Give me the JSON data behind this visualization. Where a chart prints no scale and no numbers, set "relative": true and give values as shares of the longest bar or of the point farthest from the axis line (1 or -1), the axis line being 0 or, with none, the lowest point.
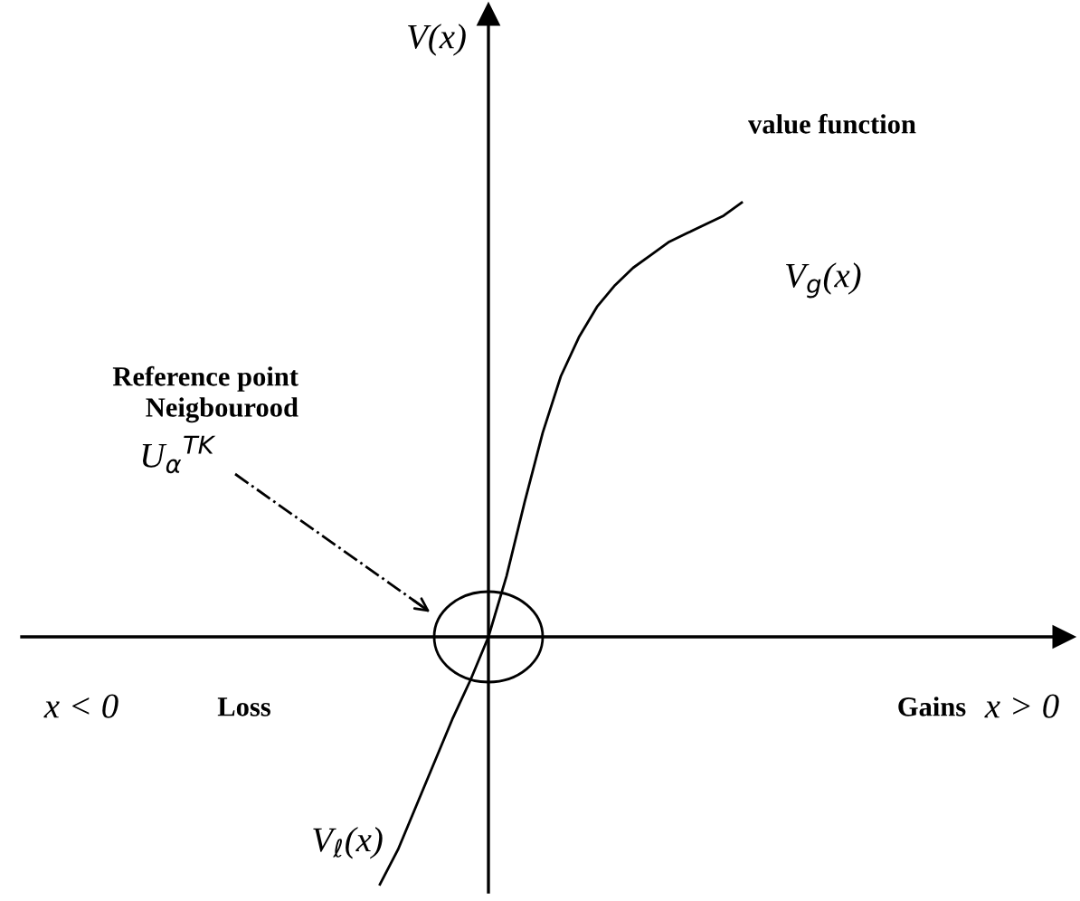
{
  "chart_data": {
    "type": "line",
    "relative": true,
    "color": "#000000",
    "ylabel": "V(x)",
    "categories": [
      null,
      null,
      null,
      null,
      null,
      null,
      null,
      null,
      null,
      null,
      null,
      null,
      null,
      null,
      null,
      null,
      null,
      null,
      null,
      null,
      null
    ],
    "values": [
      -0.57,
      -0.49,
      -0.39,
      -0.29,
      -0.19,
      -0.1,
      0,
      0.14,
      0.31,
      0.47,
      0.6,
      0.69,
      0.76,
      0.81,
      0.85,
      0.88,
      0.91,
      0.93,
      0.95,
      0.97,
      1
    ],
    "annotations": [
      "value function",
      "V$_{g}$(x)",
      "Reference point\nNeigbourood",
      "U$_{α}$$^{TK}$",
      "x < 0",
      "Loss",
      "Gains",
      "V$_{ℓ}$(x)",
      "x > 0"
    ]
  }
}
